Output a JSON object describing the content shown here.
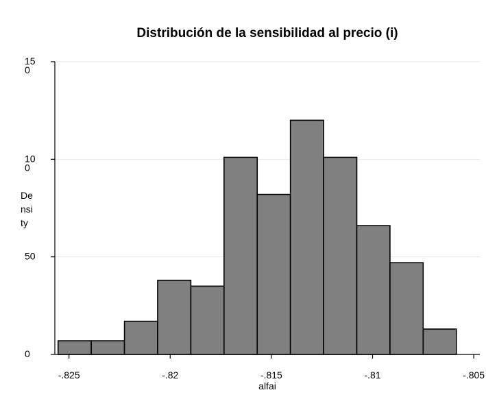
{
  "chart_data": {
    "type": "bar",
    "subtype": "histogram",
    "title": "Distribución de la sensibilidad al precio (i)",
    "xlabel": "alfai",
    "ylabel": "Density",
    "ylabel_display": [
      "De",
      "nsi",
      "ty"
    ],
    "xlim": [
      -0.8257,
      -0.8047
    ],
    "ylim": [
      0,
      150
    ],
    "x_ticks": [
      -0.825,
      -0.82,
      -0.815,
      -0.81,
      -0.805
    ],
    "x_tick_labels": [
      "-.825",
      "-.82",
      "-.815",
      "-.81",
      "-.805"
    ],
    "y_ticks": [
      0,
      50,
      100,
      150
    ],
    "y_tick_labels": [
      [
        "0"
      ],
      [
        "50"
      ],
      [
        "10",
        "0"
      ],
      [
        "15",
        "0"
      ]
    ],
    "grid": "horizontal",
    "legend": "none",
    "bin_width": 0.00164,
    "bins": [
      {
        "x0": -0.82554,
        "x1": -0.8239,
        "value": 7
      },
      {
        "x0": -0.8239,
        "x1": -0.82226,
        "value": 7
      },
      {
        "x0": -0.82226,
        "x1": -0.82062,
        "value": 17
      },
      {
        "x0": -0.82062,
        "x1": -0.81898,
        "value": 38
      },
      {
        "x0": -0.81898,
        "x1": -0.81734,
        "value": 35
      },
      {
        "x0": -0.81734,
        "x1": -0.8157,
        "value": 101
      },
      {
        "x0": -0.8157,
        "x1": -0.81406,
        "value": 82
      },
      {
        "x0": -0.81406,
        "x1": -0.81242,
        "value": 120
      },
      {
        "x0": -0.81242,
        "x1": -0.81078,
        "value": 101
      },
      {
        "x0": -0.81078,
        "x1": -0.80914,
        "value": 66
      },
      {
        "x0": -0.80914,
        "x1": -0.8075,
        "value": 47
      },
      {
        "x0": -0.8075,
        "x1": -0.80586,
        "value": 13
      }
    ],
    "colors": {
      "bar_fill": "#808080",
      "bar_stroke": "#000000",
      "grid": "#e6e6e6",
      "axis": "#000000"
    }
  }
}
